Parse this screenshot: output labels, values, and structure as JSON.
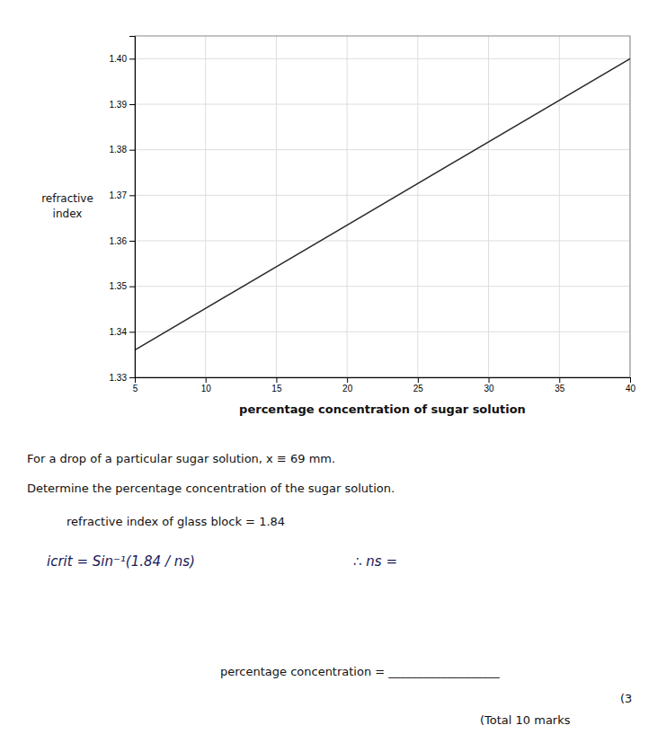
{
  "chart_data": {
    "type": "line",
    "x": [
      5,
      40
    ],
    "values": [
      1.336,
      1.4
    ],
    "color": "#2a2a2a",
    "xlim": [
      5,
      40
    ],
    "ylim": [
      1.33,
      1.405
    ],
    "xticks": [
      5,
      10,
      15,
      20,
      25,
      30,
      35,
      40
    ],
    "yticks": [
      1.33,
      1.34,
      1.35,
      1.36,
      1.37,
      1.38,
      1.39,
      {
        "value": 1.4,
        "label": "1.40"
      }
    ],
    "grid": true,
    "xlabel": "percentage concentration of sugar solution",
    "ylabel": [
      "refractive",
      "index"
    ],
    "annotations": [
      "For a drop of a particular sugar solution, x ≡ 69 mm.",
      "Determine the percentage concentration of the sugar solution.",
      "refractive index of glass block = 1.84",
      "icrit = Sin⁻¹(1.84 / ns)",
      "∴ ns =",
      "percentage concentration = ___________________",
      "(3",
      "(Total 10 marks"
    ]
  }
}
